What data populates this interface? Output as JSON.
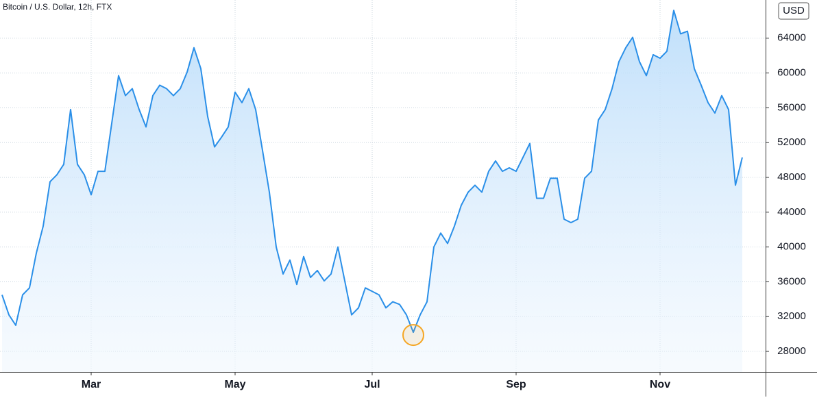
{
  "chart_data": {
    "type": "line",
    "title": "Bitcoin / U.S. Dollar, 12h, FTX",
    "y_axis_label": "USD",
    "categories": [
      null,
      null,
      null,
      null,
      null,
      null,
      null,
      null,
      null,
      null,
      null,
      null,
      null,
      "Mar",
      null,
      null,
      null,
      null,
      null,
      null,
      null,
      null,
      null,
      null,
      null,
      null,
      null,
      null,
      null,
      null,
      null,
      null,
      null,
      null,
      "May",
      null,
      null,
      null,
      null,
      null,
      null,
      null,
      null,
      null,
      null,
      null,
      null,
      null,
      null,
      null,
      null,
      null,
      null,
      null,
      "Jul",
      null,
      null,
      null,
      null,
      null,
      null,
      null,
      null,
      null,
      null,
      null,
      null,
      null,
      null,
      null,
      null,
      null,
      null,
      null,
      null,
      "Sep",
      null,
      null,
      null,
      null,
      null,
      null,
      null,
      null,
      null,
      null,
      null,
      null,
      null,
      null,
      null,
      null,
      null,
      null,
      null,
      null,
      "Nov",
      null,
      null,
      null,
      null,
      null,
      null,
      null,
      null,
      null,
      null,
      null,
      null
    ],
    "series": [
      {
        "name": "BTCUSD",
        "color": "#2a8fe8",
        "values": [
          34500,
          32200,
          31000,
          34500,
          35300,
          39300,
          42400,
          47500,
          48300,
          49500,
          55800,
          49500,
          48300,
          46000,
          48700,
          48700,
          54200,
          59700,
          57400,
          58200,
          55800,
          53800,
          57400,
          58600,
          58200,
          57400,
          58200,
          60100,
          62900,
          60500,
          55000,
          51500,
          52600,
          53800,
          57800,
          56600,
          58200,
          55800,
          51100,
          46300,
          40000,
          36900,
          38500,
          35700,
          38900,
          36500,
          37300,
          36100,
          36900,
          40000,
          36100,
          32200,
          33000,
          35300,
          34900,
          34500,
          33000,
          33700,
          33400,
          32200,
          30200,
          32200,
          33700,
          40000,
          41600,
          40400,
          42400,
          44800,
          46300,
          47100,
          46300,
          48700,
          49900,
          48700,
          49100,
          48700,
          50300,
          51900,
          45600,
          45600,
          47900,
          47900,
          43200,
          42800,
          43200,
          47900,
          48700,
          54600,
          55800,
          58200,
          61300,
          62900,
          64100,
          61300,
          59700,
          62100,
          61700,
          62500,
          67200,
          64500,
          64800,
          60500,
          58600,
          56600,
          55400,
          57400,
          55800,
          47100,
          50300
        ]
      }
    ],
    "ylim": [
      25640,
      68390
    ],
    "yticks": [
      28000,
      32000,
      36000,
      40000,
      44000,
      48000,
      52000,
      56000,
      60000,
      64000
    ],
    "grid": true,
    "highlight_index": 60
  }
}
